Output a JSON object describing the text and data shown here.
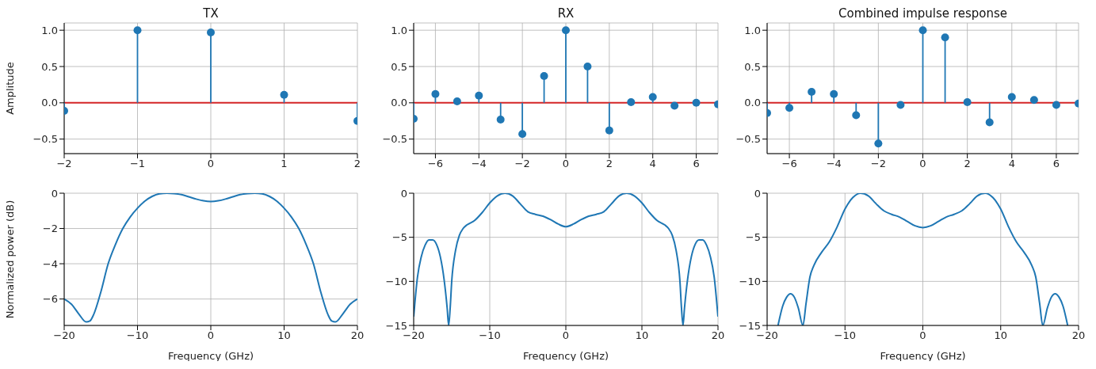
{
  "chart_data": [
    {
      "type": "lollipop",
      "title": "TX",
      "ylabel": "Amplitude",
      "x": [
        -2,
        -1,
        0,
        1,
        2
      ],
      "values": [
        -0.11,
        1.0,
        0.97,
        0.11,
        -0.25
      ],
      "color": "#1f77b4",
      "marker": "circle",
      "xlim": [
        -2,
        2
      ],
      "xticks": [
        -2,
        -1,
        0,
        1,
        2
      ],
      "ylim": [
        -0.7,
        1.1
      ],
      "yticks": [
        {
          "value": -0.5,
          "label": "−0.5"
        },
        {
          "value": 0,
          "label": "0.0"
        },
        {
          "value": 0.5,
          "label": "0.5"
        },
        {
          "value": 1,
          "label": "1.0"
        }
      ],
      "grid": true,
      "ref_lines": [
        {
          "axis": "y",
          "value": 0,
          "color": "#d62728"
        }
      ]
    },
    {
      "type": "lollipop",
      "title": "RX",
      "x": [
        -7,
        -6,
        -5,
        -4,
        -3,
        -2,
        -1,
        0,
        1,
        2,
        3,
        4,
        5,
        6,
        7
      ],
      "values": [
        -0.22,
        0.12,
        0.02,
        0.1,
        -0.23,
        -0.43,
        0.37,
        1.0,
        0.5,
        -0.38,
        0.01,
        0.08,
        -0.04,
        0.0,
        -0.02
      ],
      "color": "#1f77b4",
      "marker": "circle",
      "xlim": [
        -7,
        7
      ],
      "xticks": [
        -6,
        -4,
        -2,
        0,
        2,
        4,
        6
      ],
      "ylim": [
        -0.7,
        1.1
      ],
      "yticks": [
        {
          "value": -0.5,
          "label": "−0.5"
        },
        {
          "value": 0,
          "label": "0.0"
        },
        {
          "value": 0.5,
          "label": "0.5"
        },
        {
          "value": 1,
          "label": "1.0"
        }
      ],
      "grid": true,
      "ref_lines": [
        {
          "axis": "y",
          "value": 0,
          "color": "#d62728"
        }
      ]
    },
    {
      "type": "lollipop",
      "title": "Combined impulse response",
      "x": [
        -7,
        -6,
        -5,
        -4,
        -3,
        -2,
        -1,
        0,
        1,
        2,
        3,
        4,
        5,
        6,
        7
      ],
      "values": [
        -0.14,
        -0.07,
        0.15,
        0.12,
        -0.17,
        -0.56,
        -0.03,
        1.0,
        0.9,
        0.01,
        -0.27,
        0.08,
        0.04,
        -0.03,
        -0.01
      ],
      "color": "#1f77b4",
      "marker": "circle",
      "xlim": [
        -7,
        7
      ],
      "xticks": [
        -6,
        -4,
        -2,
        0,
        2,
        4,
        6
      ],
      "ylim": [
        -0.7,
        1.1
      ],
      "yticks": [
        {
          "value": -0.5,
          "label": "−0.5"
        },
        {
          "value": 0,
          "label": "0.0"
        },
        {
          "value": 0.5,
          "label": "0.5"
        },
        {
          "value": 1,
          "label": "1.0"
        }
      ],
      "grid": true,
      "ref_lines": [
        {
          "axis": "y",
          "value": 0,
          "color": "#d62728"
        }
      ]
    },
    {
      "type": "line",
      "xlabel": "Frequency (GHz)",
      "ylabel": "Normalized power (dB)",
      "x": [
        -20,
        -19,
        -18,
        -17,
        -16.5,
        -16,
        -15,
        -14,
        -13,
        -12,
        -11,
        -10,
        -9,
        -8,
        -7,
        -6,
        -5,
        -4,
        -3,
        -2,
        -1,
        0,
        1,
        2,
        3,
        4,
        5,
        6,
        7,
        8,
        9,
        10,
        11,
        12,
        13,
        14,
        15,
        16,
        16.5,
        17,
        18,
        19,
        20
      ],
      "values": [
        -6.0,
        -6.3,
        -6.85,
        -7.3,
        -7.25,
        -6.9,
        -5.6,
        -4.0,
        -2.9,
        -2.0,
        -1.35,
        -0.85,
        -0.45,
        -0.18,
        -0.03,
        0,
        -0.02,
        -0.08,
        -0.2,
        -0.33,
        -0.43,
        -0.47,
        -0.43,
        -0.33,
        -0.2,
        -0.08,
        -0.02,
        0,
        -0.03,
        -0.18,
        -0.45,
        -0.85,
        -1.35,
        -2.0,
        -2.9,
        -4.0,
        -5.6,
        -6.9,
        -7.25,
        -7.3,
        -6.85,
        -6.3,
        -6.0
      ],
      "color": "#1f77b4",
      "xlim": [
        -20,
        20
      ],
      "xticks": [
        -20,
        -10,
        0,
        10,
        20
      ],
      "ylim": [
        -7.5,
        0
      ],
      "yticks": [
        -6,
        -4,
        -2,
        0
      ],
      "grid": true
    },
    {
      "type": "line",
      "xlabel": "Frequency (GHz)",
      "x": [
        -20,
        -19.5,
        -19,
        -18.5,
        -18,
        -17.5,
        -17,
        -16.5,
        -16,
        -15.6,
        -15.4,
        -15.2,
        -15,
        -14.5,
        -14,
        -13.5,
        -13,
        -12,
        -11,
        -10,
        -9,
        -8,
        -7,
        -6,
        -5,
        -4,
        -3,
        -2,
        -1,
        0,
        1,
        2,
        3,
        4,
        5,
        6,
        7,
        8,
        9,
        10,
        11,
        12,
        13,
        13.5,
        14,
        14.5,
        15,
        15.2,
        15.4,
        15.6,
        16,
        16.5,
        17,
        17.5,
        18,
        18.5,
        19,
        19.5,
        20
      ],
      "values": [
        -14.0,
        -9.5,
        -7.2,
        -5.9,
        -5.3,
        -5.3,
        -5.8,
        -7.2,
        -9.8,
        -13,
        -15,
        -13,
        -10,
        -6.5,
        -4.8,
        -4.0,
        -3.6,
        -3.1,
        -2.2,
        -1.1,
        -0.3,
        0,
        -0.3,
        -1.2,
        -2.1,
        -2.4,
        -2.6,
        -3.0,
        -3.5,
        -3.8,
        -3.5,
        -3.0,
        -2.6,
        -2.4,
        -2.1,
        -1.2,
        -0.3,
        0,
        -0.3,
        -1.1,
        -2.2,
        -3.1,
        -3.6,
        -4.0,
        -4.8,
        -6.5,
        -10,
        -13,
        -15,
        -13,
        -9.8,
        -7.2,
        -5.8,
        -5.3,
        -5.3,
        -5.9,
        -7.2,
        -9.5,
        -14.0
      ],
      "color": "#1f77b4",
      "xlim": [
        -20,
        20
      ],
      "xticks": [
        -20,
        -10,
        0,
        10,
        20
      ],
      "ylim": [
        -15,
        0
      ],
      "yticks": [
        -15,
        -10,
        -5,
        0
      ],
      "grid": true
    },
    {
      "type": "line",
      "xlabel": "Frequency (GHz)",
      "x": [
        -18.6,
        -18,
        -17.5,
        -17,
        -16.5,
        -16,
        -15.4,
        -15,
        -14.5,
        -14,
        -13,
        -12,
        -11,
        -10,
        -9,
        -8,
        -7,
        -6,
        -5,
        -4,
        -3,
        -2,
        -1,
        0,
        1,
        2,
        3,
        4,
        5,
        6,
        7,
        8,
        9,
        10,
        11,
        12,
        13,
        14,
        14.5,
        15,
        15.4,
        16,
        16.5,
        17,
        17.5,
        18,
        18.6
      ],
      "values": [
        -15,
        -12.8,
        -11.8,
        -11.4,
        -11.8,
        -13,
        -15,
        -12.5,
        -9.5,
        -8.2,
        -6.7,
        -5.5,
        -3.8,
        -1.8,
        -0.5,
        0,
        -0.3,
        -1.2,
        -2.0,
        -2.4,
        -2.7,
        -3.2,
        -3.7,
        -3.9,
        -3.7,
        -3.2,
        -2.7,
        -2.4,
        -2.0,
        -1.2,
        -0.3,
        0,
        -0.5,
        -1.8,
        -3.8,
        -5.5,
        -6.7,
        -8.2,
        -9.5,
        -12.5,
        -15,
        -13,
        -11.8,
        -11.4,
        -11.8,
        -12.8,
        -15
      ],
      "color": "#1f77b4",
      "xlim": [
        -20,
        20
      ],
      "xticks": [
        -20,
        -10,
        0,
        10,
        20
      ],
      "ylim": [
        -15,
        0
      ],
      "yticks": [
        -15,
        -10,
        -5,
        0
      ],
      "grid": true
    }
  ]
}
